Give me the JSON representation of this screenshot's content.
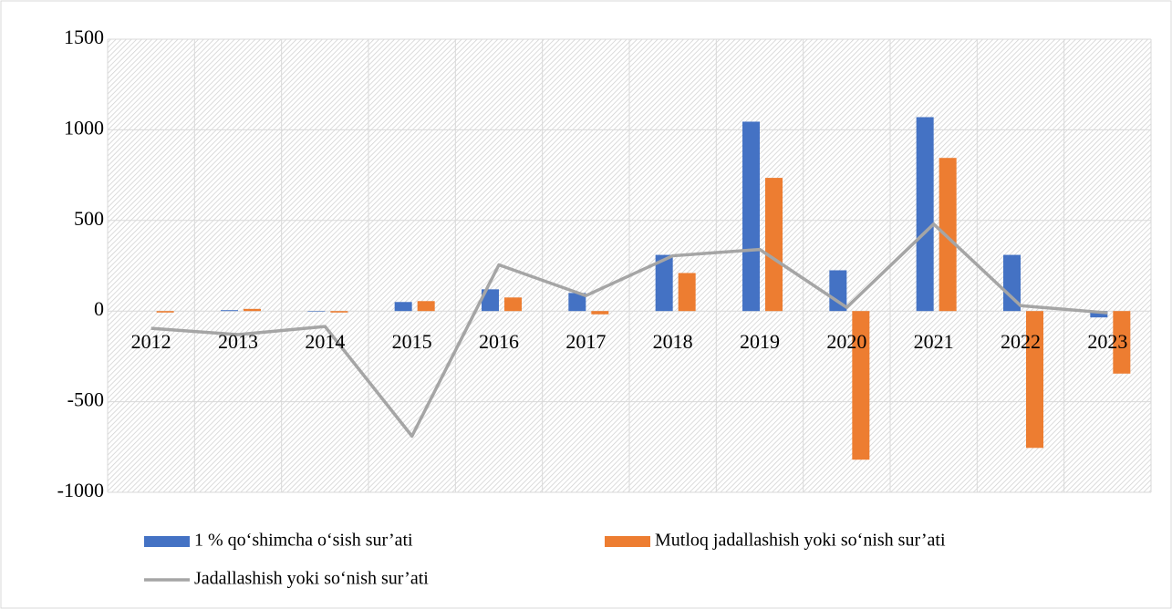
{
  "chart_data": {
    "type": "bar",
    "categories": [
      "2012",
      "2013",
      "2014",
      "2015",
      "2016",
      "2017",
      "2018",
      "2019",
      "2020",
      "2021",
      "2022",
      "2023"
    ],
    "series": [
      {
        "name": "1 % qo‘shimcha o‘sish sur’ati",
        "color": "#4472c4",
        "type": "bar",
        "values": [
          0,
          5,
          -3,
          50,
          120,
          100,
          310,
          1045,
          225,
          1070,
          310,
          -35
        ]
      },
      {
        "name": "Mutloq jadallashish yoki so‘nish sur’ati",
        "color": "#ed7d31",
        "type": "bar",
        "values": [
          -8,
          12,
          -8,
          55,
          75,
          -18,
          210,
          735,
          -820,
          845,
          -755,
          -345
        ]
      },
      {
        "name": "Jadallashish yoki so‘nish sur’ati",
        "color": "#a5a5a5",
        "type": "line",
        "values": [
          -95,
          -130,
          -85,
          -690,
          255,
          85,
          305,
          340,
          20,
          480,
          30,
          -10
        ]
      }
    ],
    "ylim": [
      -1000,
      1500
    ],
    "yticks": [
      -1000,
      -500,
      0,
      500,
      1000,
      1500
    ],
    "grid": true
  }
}
